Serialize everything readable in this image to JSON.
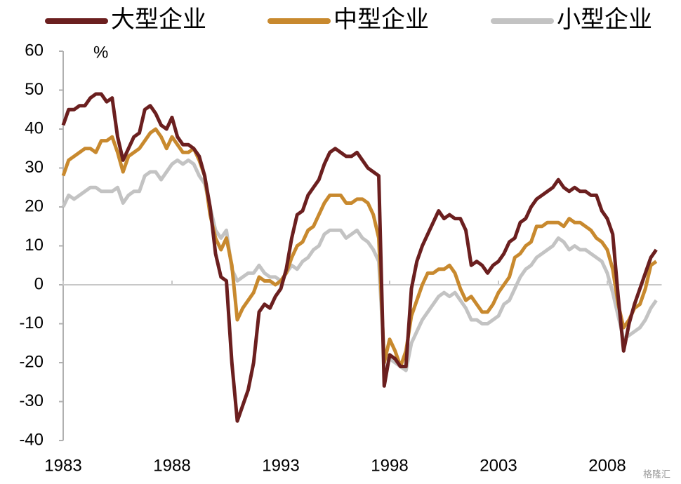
{
  "chart_data": {
    "type": "line",
    "unit_label": "%",
    "watermark": "格隆汇",
    "x": [
      1983,
      1983.25,
      1983.5,
      1983.75,
      1984,
      1984.25,
      1984.5,
      1984.75,
      1985,
      1985.25,
      1985.5,
      1985.75,
      1986,
      1986.25,
      1986.5,
      1986.75,
      1987,
      1987.25,
      1987.5,
      1987.75,
      1988,
      1988.25,
      1988.5,
      1988.75,
      1989,
      1989.25,
      1989.5,
      1989.75,
      1990,
      1990.25,
      1990.5,
      1990.75,
      1991,
      1991.25,
      1991.5,
      1991.75,
      1992,
      1992.25,
      1992.5,
      1992.75,
      1993,
      1993.25,
      1993.5,
      1993.75,
      1994,
      1994.25,
      1994.5,
      1994.75,
      1995,
      1995.25,
      1995.5,
      1995.75,
      1996,
      1996.25,
      1996.5,
      1996.75,
      1997,
      1997.25,
      1997.5,
      1997.75,
      1998,
      1998.25,
      1998.5,
      1998.75,
      1999,
      1999.25,
      1999.5,
      1999.75,
      2000,
      2000.25,
      2000.5,
      2000.75,
      2001,
      2001.25,
      2001.5,
      2001.75,
      2002,
      2002.25,
      2002.5,
      2002.75,
      2003,
      2003.25,
      2003.5,
      2003.75,
      2004,
      2004.25,
      2004.5,
      2004.75,
      2005,
      2005.25,
      2005.5,
      2005.75,
      2006,
      2006.25,
      2006.5,
      2006.75,
      2007,
      2007.25,
      2007.5,
      2007.75,
      2008,
      2008.25,
      2008.5,
      2008.75,
      2009,
      2009.25,
      2009.5,
      2009.75,
      2010,
      2010.25
    ],
    "series": [
      {
        "name": "大型企业",
        "color": "#6b1f1f",
        "values": [
          41,
          45,
          45,
          46,
          46,
          48,
          49,
          49,
          47,
          48,
          38,
          32,
          35,
          38,
          39,
          45,
          46,
          44,
          41,
          40,
          43,
          38,
          36,
          36,
          35,
          33,
          28,
          20,
          8,
          2,
          1,
          -20,
          -35,
          -31,
          -27,
          -20,
          -7,
          -5,
          -6,
          -3,
          -1,
          4,
          12,
          18,
          19,
          23,
          25,
          27,
          31,
          34,
          35,
          34,
          33,
          33,
          34,
          32,
          30,
          29,
          28,
          -26,
          -18,
          -19,
          -21,
          -21,
          -1,
          6,
          10,
          13,
          16,
          19,
          17,
          18,
          17,
          17,
          14,
          5,
          6,
          5,
          3,
          5,
          6,
          8,
          11,
          12,
          16,
          17,
          20,
          22,
          23,
          24,
          25,
          27,
          25,
          24,
          25,
          24,
          24,
          23,
          23,
          19,
          17,
          13,
          -3,
          -17,
          -10,
          -5,
          -1,
          3,
          7,
          9
        ]
      },
      {
        "name": "中型企业",
        "color": "#c8892e",
        "values": [
          28,
          32,
          33,
          34,
          35,
          35,
          34,
          37,
          37,
          38,
          34,
          29,
          33,
          34,
          35,
          37,
          39,
          40,
          38,
          35,
          38,
          36,
          34,
          34,
          35,
          32,
          28,
          18,
          12,
          9,
          12,
          5,
          -9,
          -6,
          -4,
          -2,
          2,
          1,
          1,
          0,
          1,
          3,
          7,
          10,
          11,
          14,
          15,
          18,
          21,
          23,
          23,
          23,
          21,
          21,
          22,
          22,
          21,
          18,
          12,
          -20,
          -14,
          -17,
          -21,
          -17,
          -8,
          -4,
          0,
          3,
          3,
          4,
          4,
          5,
          3,
          -1,
          -4,
          -3,
          -5,
          -7,
          -7,
          -5,
          -2,
          0,
          2,
          7,
          8,
          10,
          11,
          15,
          15,
          16,
          16,
          16,
          15,
          17,
          16,
          16,
          15,
          14,
          12,
          11,
          9,
          4,
          -5,
          -11,
          -9,
          -6,
          -5,
          -1,
          5,
          6
        ]
      },
      {
        "name": "小型企业",
        "color": "#c3c3c3",
        "values": [
          20,
          23,
          22,
          23,
          24,
          25,
          25,
          24,
          24,
          24,
          25,
          21,
          23,
          24,
          24,
          28,
          29,
          29,
          27,
          29,
          31,
          32,
          31,
          32,
          31,
          28,
          26,
          20,
          14,
          12,
          14,
          4,
          1,
          2,
          3,
          3,
          5,
          3,
          2,
          2,
          1,
          3,
          5,
          4,
          6,
          7,
          9,
          10,
          13,
          14,
          14,
          14,
          12,
          13,
          14,
          12,
          11,
          9,
          6,
          -19,
          -19,
          -20,
          -21,
          -22,
          -15,
          -12,
          -9,
          -7,
          -5,
          -3,
          -2,
          -3,
          -2,
          -4,
          -6,
          -9,
          -9,
          -10,
          -10,
          -9,
          -8,
          -5,
          -4,
          -1,
          2,
          4,
          5,
          7,
          8,
          9,
          10,
          12,
          11,
          9,
          10,
          9,
          9,
          8,
          7,
          6,
          3,
          -2,
          -8,
          -14,
          -13,
          -12,
          -11,
          -9,
          -6,
          -4
        ]
      }
    ],
    "xlim": [
      1983,
      2010.5
    ],
    "xticks": [
      1983,
      1988,
      1993,
      1998,
      2003,
      2008
    ],
    "ylim": [
      -40,
      60
    ],
    "yticks": [
      -40,
      -30,
      -20,
      -10,
      0,
      10,
      20,
      30,
      40,
      50,
      60
    ]
  }
}
